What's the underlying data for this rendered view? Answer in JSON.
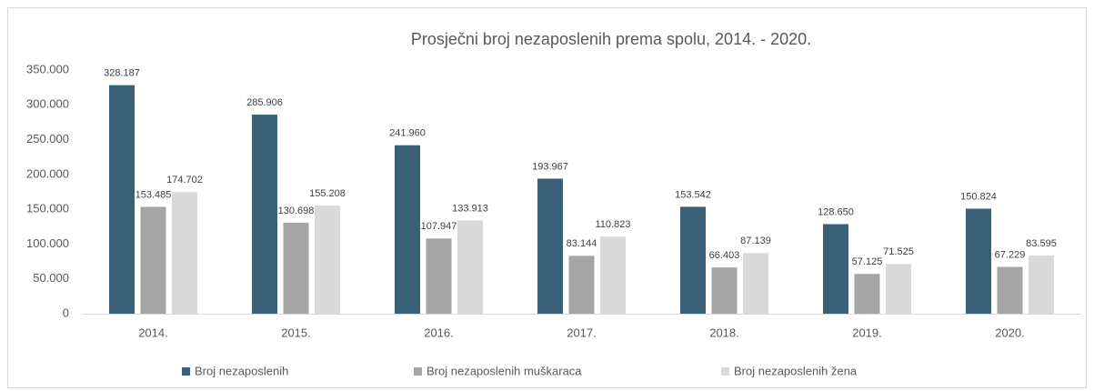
{
  "chart_data": {
    "type": "bar",
    "title": "Prosječni broj nezaposlenih prema spolu, 2014. - 2020.",
    "categories": [
      "2014.",
      "2015.",
      "2016.",
      "2017.",
      "2018.",
      "2019.",
      "2020."
    ],
    "series": [
      {
        "name": "Broj nezaposlenih",
        "color": "#3a6078",
        "values": [
          328187,
          285906,
          241960,
          193967,
          153542,
          128650,
          150824
        ],
        "value_labels": [
          "328.187",
          "285.906",
          "241.960",
          "193.967",
          "153.542",
          "128.650",
          "150.824"
        ]
      },
      {
        "name": "Broj nezaposlenih muškaraca",
        "color": "#a5a5a5",
        "values": [
          153485,
          130698,
          107947,
          83144,
          66403,
          57125,
          67229
        ],
        "value_labels": [
          "153.485",
          "130.698",
          "107.947",
          "83.144",
          "66.403",
          "57.125",
          "67.229"
        ]
      },
      {
        "name": "Broj nezaposlenih žena",
        "color": "#d9d9d9",
        "values": [
          174702,
          155208,
          133913,
          110823,
          87139,
          71525,
          83595
        ],
        "value_labels": [
          "174.702",
          "155.208",
          "133.913",
          "110.823",
          "87.139",
          "71.525",
          "83.595"
        ]
      }
    ],
    "ylim": [
      0,
      350000
    ],
    "yticks": [
      0,
      {
        "value": 50000,
        "label": "50.000"
      },
      {
        "value": 100000,
        "label": "100.000"
      },
      {
        "value": 150000,
        "label": "150.000"
      },
      {
        "value": 200000,
        "label": "200.000"
      },
      {
        "value": 250000,
        "label": "250.000"
      },
      {
        "value": 300000,
        "label": "300.000"
      },
      {
        "value": 350000,
        "label": "350.000"
      }
    ],
    "grid": false,
    "legend": "bottom"
  }
}
